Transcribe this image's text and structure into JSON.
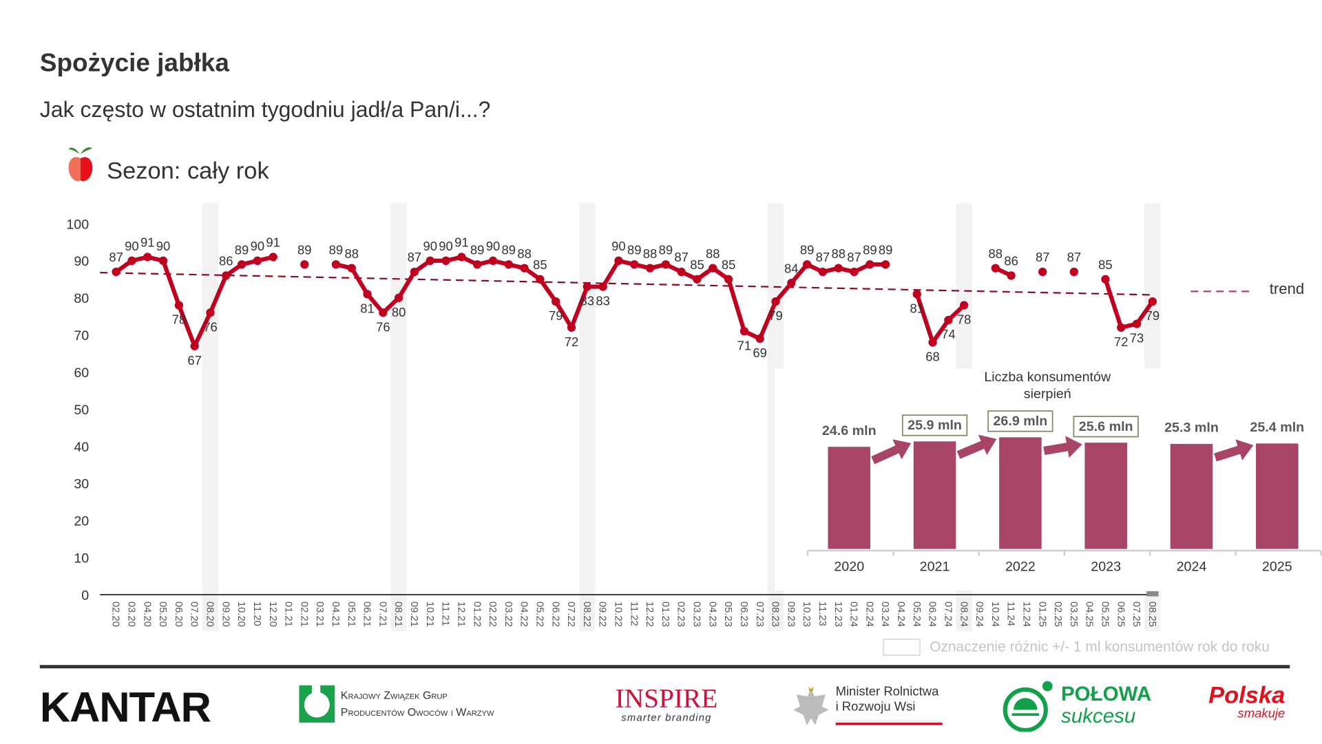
{
  "title": "Spożycie jabłka",
  "subtitle": "Jak często w ostatnim tygodniu jadł/a Pan/i...?",
  "season": "Sezon: cały rok",
  "chart_data": [
    {
      "type": "line",
      "ylim": [
        0,
        100
      ],
      "yticks": [
        0,
        10,
        20,
        30,
        40,
        50,
        60,
        70,
        80,
        90,
        100
      ],
      "grid": false,
      "x": [
        "02.20",
        "03.20",
        "04.20",
        "05.20",
        "06.20",
        "07.20",
        "08.20",
        "09.20",
        "10.20",
        "11.20",
        "12.20",
        "01.21",
        "02.21",
        "03.21",
        "04.21",
        "05.21",
        "06.21",
        "07.21",
        "08.21",
        "09.21",
        "10.21",
        "11.21",
        "12.21",
        "01.22",
        "02.22",
        "03.22",
        "04.22",
        "05.22",
        "06.22",
        "07.22",
        "08.22",
        "09.22",
        "10.22",
        "11.22",
        "12.22",
        "01.23",
        "02.23",
        "03.23",
        "04.23",
        "05.23",
        "06.23",
        "07.23",
        "08.23",
        "09.23",
        "10.23",
        "11.23",
        "12.23",
        "01.24",
        "02.24",
        "03.24",
        "04.24",
        "05.24",
        "06.24",
        "07.24",
        "08.24",
        "09.24",
        "10.24",
        "11.24",
        "12.24",
        "01.25",
        "02.25",
        "03.25",
        "04.25",
        "05.25",
        "06.25",
        "07.25",
        "08.25"
      ],
      "values": [
        87,
        90,
        91,
        90,
        78,
        67,
        76,
        86,
        89,
        90,
        91,
        null,
        89,
        null,
        89,
        88,
        81,
        76,
        80,
        87,
        90,
        90,
        91,
        89,
        90,
        89,
        88,
        85,
        79,
        72,
        83,
        83,
        90,
        89,
        88,
        89,
        87,
        85,
        88,
        85,
        71,
        69,
        79,
        84,
        89,
        87,
        88,
        87,
        89,
        89,
        null,
        81,
        68,
        74,
        78,
        null,
        88,
        86,
        null,
        87,
        null,
        87,
        null,
        85,
        72,
        73,
        79
      ],
      "highlighted_months": [
        "08.20",
        "08.21",
        "08.22",
        "08.23",
        "08.24",
        "08.25"
      ],
      "trend": {
        "name": "trend",
        "start": 86.8,
        "end": 80.8
      },
      "colors": {
        "line": "#c0001f",
        "trend": "#8b0a1e",
        "highlight": "#f2f2f2"
      }
    },
    {
      "type": "bar",
      "title": "Liczba konsumentów",
      "subtitle": "sierpień",
      "categories": [
        "2020",
        "2021",
        "2022",
        "2023",
        "2024",
        "2025"
      ],
      "values": [
        24.6,
        25.9,
        26.9,
        25.6,
        25.3,
        25.4
      ],
      "labels": [
        "24.6 mln",
        "25.9 mln",
        "26.9 mln",
        "25.6 mln",
        "25.3 mln",
        "25.4 mln"
      ],
      "boxed": [
        false,
        true,
        true,
        true,
        false,
        false
      ],
      "arrows": [
        [
          0,
          1
        ],
        [
          1,
          2
        ],
        [
          2,
          3
        ],
        [
          4,
          5
        ]
      ],
      "colors": {
        "bar": "#a84565",
        "box": "#8a8a70"
      }
    }
  ],
  "legend_note": "Oznaczenie różnic +/- 1 ml konsumentów rok do roku",
  "logos": {
    "kantar": "KANTAR",
    "kzgpow_line1": "Krajowy Związek Grup",
    "kzgpow_line2": "Producentów Owoców i Warzyw",
    "inspire": "INSPIRE",
    "inspire_tag": "smarter branding",
    "minister_line1": "Minister Rolnictwa",
    "minister_line2": "i Rozwoju Wsi",
    "polowa": "POŁOWA",
    "polowa_tag": "sukcesu",
    "polska": "Polska",
    "polska_tag": "smakuje"
  }
}
